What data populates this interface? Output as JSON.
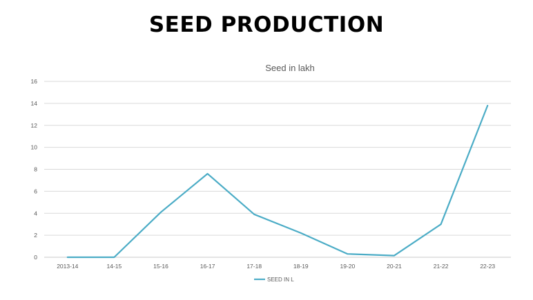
{
  "page": {
    "title": "SEED PRODUCTION"
  },
  "chart_data": {
    "type": "line",
    "title": "Seed in lakh",
    "categories": [
      "2013-14",
      "14-15",
      "15-16",
      "16-17",
      "17-18",
      "18-19",
      "19-20",
      "20-21",
      "21-22",
      "22-23"
    ],
    "series": [
      {
        "name": "SEED IN L",
        "values": [
          0,
          0,
          4.1,
          7.6,
          3.9,
          2.2,
          0.3,
          0.15,
          3.0,
          13.8
        ],
        "color": "#4BACC6"
      }
    ],
    "ylim": [
      0,
      16
    ],
    "yticks": [
      0,
      2,
      4,
      6,
      8,
      10,
      12,
      14,
      16
    ],
    "grid": true,
    "legend_position": "bottom"
  }
}
